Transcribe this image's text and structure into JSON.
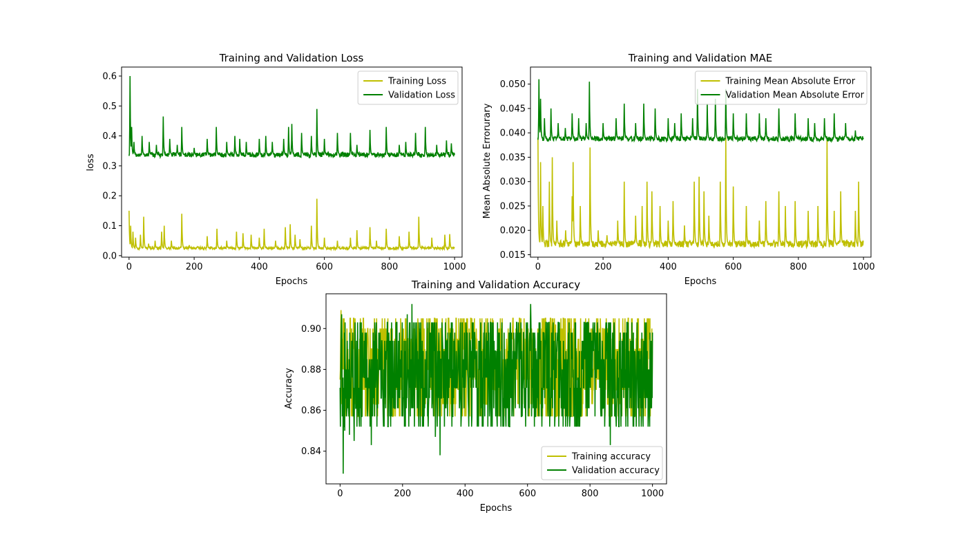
{
  "chart_data": [
    {
      "type": "line",
      "title": "Training and Validation Loss",
      "xlabel": "Epochs",
      "ylabel": "loss",
      "xlim": [
        -23,
        1023
      ],
      "ylim": [
        -0.005,
        0.63
      ],
      "xticks": [
        0,
        200,
        400,
        600,
        800,
        1000
      ],
      "yticks": [
        0.0,
        0.1,
        0.2,
        0.3,
        0.4,
        0.5,
        0.6
      ],
      "ytick_decimals": 1,
      "legend": "upper-right",
      "grid": false,
      "n_epochs": 1000,
      "series": [
        {
          "name": "Training Loss",
          "color": "#bfbf00",
          "baseline": 0.025,
          "noise": 0.004,
          "spikes": [
            [
              0,
              0.15
            ],
            [
              5,
              0.1
            ],
            [
              12,
              0.08
            ],
            [
              20,
              0.06
            ],
            [
              35,
              0.07
            ],
            [
              45,
              0.13
            ],
            [
              60,
              0.04
            ],
            [
              80,
              0.05
            ],
            [
              100,
              0.08
            ],
            [
              108,
              0.1
            ],
            [
              130,
              0.05
            ],
            [
              162,
              0.14
            ],
            [
              185,
              0.035
            ],
            [
              210,
              0.03
            ],
            [
              240,
              0.065
            ],
            [
              270,
              0.09
            ],
            [
              300,
              0.05
            ],
            [
              330,
              0.08
            ],
            [
              350,
              0.075
            ],
            [
              375,
              0.07
            ],
            [
              400,
              0.06
            ],
            [
              415,
              0.09
            ],
            [
              450,
              0.05
            ],
            [
              480,
              0.095
            ],
            [
              495,
              0.105
            ],
            [
              510,
              0.07
            ],
            [
              525,
              0.055
            ],
            [
              560,
              0.1
            ],
            [
              577,
              0.19
            ],
            [
              600,
              0.06
            ],
            [
              640,
              0.05
            ],
            [
              680,
              0.06
            ],
            [
              700,
              0.085
            ],
            [
              740,
              0.095
            ],
            [
              760,
              0.05
            ],
            [
              790,
              0.09
            ],
            [
              830,
              0.065
            ],
            [
              860,
              0.08
            ],
            [
              890,
              0.13
            ],
            [
              930,
              0.06
            ],
            [
              970,
              0.07
            ],
            [
              985,
              0.072
            ]
          ]
        },
        {
          "name": "Validation Loss",
          "color": "#008000",
          "baseline": 0.337,
          "noise": 0.008,
          "spikes": [
            [
              3,
              0.6
            ],
            [
              8,
              0.43
            ],
            [
              15,
              0.38
            ],
            [
              40,
              0.4
            ],
            [
              62,
              0.38
            ],
            [
              84,
              0.37
            ],
            [
              105,
              0.465
            ],
            [
              125,
              0.39
            ],
            [
              148,
              0.37
            ],
            [
              162,
              0.43
            ],
            [
              200,
              0.36
            ],
            [
              240,
              0.39
            ],
            [
              268,
              0.43
            ],
            [
              300,
              0.38
            ],
            [
              325,
              0.4
            ],
            [
              340,
              0.39
            ],
            [
              360,
              0.38
            ],
            [
              400,
              0.39
            ],
            [
              420,
              0.4
            ],
            [
              440,
              0.38
            ],
            [
              475,
              0.39
            ],
            [
              490,
              0.43
            ],
            [
              500,
              0.44
            ],
            [
              530,
              0.41
            ],
            [
              560,
              0.4
            ],
            [
              577,
              0.49
            ],
            [
              600,
              0.39
            ],
            [
              640,
              0.41
            ],
            [
              680,
              0.41
            ],
            [
              700,
              0.37
            ],
            [
              740,
              0.42
            ],
            [
              790,
              0.43
            ],
            [
              830,
              0.37
            ],
            [
              850,
              0.38
            ],
            [
              880,
              0.41
            ],
            [
              910,
              0.43
            ],
            [
              945,
              0.37
            ],
            [
              975,
              0.385
            ],
            [
              990,
              0.375
            ]
          ]
        }
      ]
    },
    {
      "type": "line",
      "title": "Training and Validation MAE",
      "xlabel": "Epochs",
      "ylabel": "Mean Absolute Errorurary",
      "xlim": [
        -23,
        1023
      ],
      "ylim": [
        0.0145,
        0.0535
      ],
      "xticks": [
        0,
        200,
        400,
        600,
        800,
        1000
      ],
      "yticks": [
        0.015,
        0.02,
        0.025,
        0.03,
        0.035,
        0.04,
        0.045,
        0.05
      ],
      "ytick_decimals": 3,
      "legend": "upper-right",
      "grid": false,
      "n_epochs": 1000,
      "series": [
        {
          "name": "Training Mean Absolute Error",
          "color": "#bfbf00",
          "baseline": 0.0172,
          "noise": 0.0007,
          "spikes": [
            [
              0,
              0.039
            ],
            [
              8,
              0.034
            ],
            [
              15,
              0.025
            ],
            [
              35,
              0.03
            ],
            [
              44,
              0.035
            ],
            [
              58,
              0.022
            ],
            [
              85,
              0.02
            ],
            [
              105,
              0.027
            ],
            [
              108,
              0.034
            ],
            [
              130,
              0.025
            ],
            [
              160,
              0.037
            ],
            [
              185,
              0.02
            ],
            [
              212,
              0.019
            ],
            [
              245,
              0.022
            ],
            [
              265,
              0.03
            ],
            [
              300,
              0.023
            ],
            [
              320,
              0.025
            ],
            [
              335,
              0.03
            ],
            [
              350,
              0.028
            ],
            [
              375,
              0.025
            ],
            [
              400,
              0.022
            ],
            [
              415,
              0.026
            ],
            [
              450,
              0.021
            ],
            [
              480,
              0.03
            ],
            [
              495,
              0.031
            ],
            [
              510,
              0.028
            ],
            [
              525,
              0.023
            ],
            [
              560,
              0.03
            ],
            [
              577,
              0.039
            ],
            [
              600,
              0.029
            ],
            [
              640,
              0.025
            ],
            [
              680,
              0.022
            ],
            [
              700,
              0.026
            ],
            [
              740,
              0.028
            ],
            [
              760,
              0.025
            ],
            [
              790,
              0.026
            ],
            [
              830,
              0.024
            ],
            [
              860,
              0.025
            ],
            [
              888,
              0.039
            ],
            [
              910,
              0.024
            ],
            [
              930,
              0.028
            ],
            [
              975,
              0.024
            ],
            [
              985,
              0.03
            ]
          ]
        },
        {
          "name": "Validation Mean Absolute Error",
          "color": "#008000",
          "baseline": 0.0388,
          "noise": 0.0005,
          "spikes": [
            [
              3,
              0.051
            ],
            [
              8,
              0.047
            ],
            [
              20,
              0.043
            ],
            [
              40,
              0.045
            ],
            [
              62,
              0.042
            ],
            [
              84,
              0.041
            ],
            [
              105,
              0.044
            ],
            [
              125,
              0.043
            ],
            [
              148,
              0.042
            ],
            [
              158,
              0.0505
            ],
            [
              200,
              0.042
            ],
            [
              240,
              0.043
            ],
            [
              265,
              0.046
            ],
            [
              300,
              0.042
            ],
            [
              325,
              0.046
            ],
            [
              360,
              0.045
            ],
            [
              400,
              0.043
            ],
            [
              420,
              0.042
            ],
            [
              440,
              0.044
            ],
            [
              475,
              0.043
            ],
            [
              490,
              0.049
            ],
            [
              520,
              0.046
            ],
            [
              545,
              0.047
            ],
            [
              577,
              0.049
            ],
            [
              600,
              0.044
            ],
            [
              640,
              0.044
            ],
            [
              680,
              0.044
            ],
            [
              700,
              0.043
            ],
            [
              740,
              0.045
            ],
            [
              790,
              0.044
            ],
            [
              830,
              0.043
            ],
            [
              850,
              0.042
            ],
            [
              880,
              0.043
            ],
            [
              910,
              0.044
            ],
            [
              945,
              0.042
            ],
            [
              975,
              0.0405
            ]
          ]
        }
      ]
    },
    {
      "type": "line",
      "title": "Training and Validation Accuracy",
      "xlabel": "Epochs",
      "ylabel": "Accuracy",
      "xlim": [
        -45,
        1045
      ],
      "ylim": [
        0.824,
        0.917
      ],
      "xticks": [
        0,
        200,
        400,
        600,
        800,
        1000
      ],
      "yticks": [
        0.84,
        0.86,
        0.88,
        0.9
      ],
      "ytick_decimals": 2,
      "legend": "lower-right",
      "grid": false,
      "n_epochs": 1000,
      "series": [
        {
          "name": "Training accuracy",
          "color": "#bfbf00",
          "levels": [
            0.857,
            0.863,
            0.87,
            0.875,
            0.88,
            0.885,
            0.89,
            0.895,
            0.9,
            0.905
          ],
          "extremes": [
            [
              3,
              0.909
            ],
            [
              50,
              0.889
            ],
            [
              400,
              0.903
            ],
            [
              450,
              0.902
            ],
            [
              490,
              0.904
            ],
            [
              690,
              0.902
            ],
            [
              740,
              0.905
            ],
            [
              950,
              0.903
            ],
            [
              995,
              0.888
            ]
          ]
        },
        {
          "name": "Validation accuracy",
          "color": "#008000",
          "levels": [
            0.852,
            0.857,
            0.861,
            0.866,
            0.871,
            0.876,
            0.88,
            0.885,
            0.889,
            0.894,
            0.898,
            0.903
          ],
          "extremes": [
            [
              5,
              0.907
            ],
            [
              10,
              0.829
            ],
            [
              15,
              0.85
            ],
            [
              30,
              0.848
            ],
            [
              45,
              0.845
            ],
            [
              100,
              0.843
            ],
            [
              215,
              0.907
            ],
            [
              230,
              0.912
            ],
            [
              305,
              0.847
            ],
            [
              320,
              0.838
            ],
            [
              610,
              0.912
            ],
            [
              865,
              0.843
            ],
            [
              995,
              0.861
            ]
          ]
        }
      ]
    }
  ]
}
